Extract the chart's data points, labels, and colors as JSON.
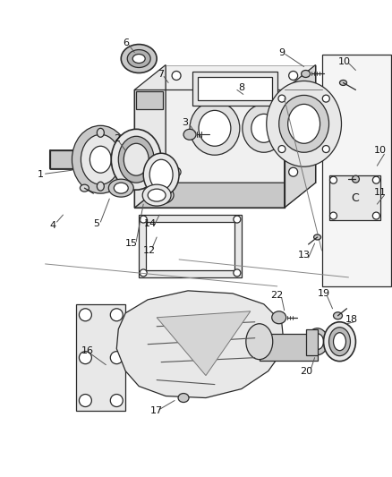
{
  "background_color": "#ffffff",
  "figsize": [
    4.39,
    5.33
  ],
  "dpi": 100,
  "line_color": "#2a2a2a",
  "label_fontsize": 7.5,
  "line_width": 0.9
}
